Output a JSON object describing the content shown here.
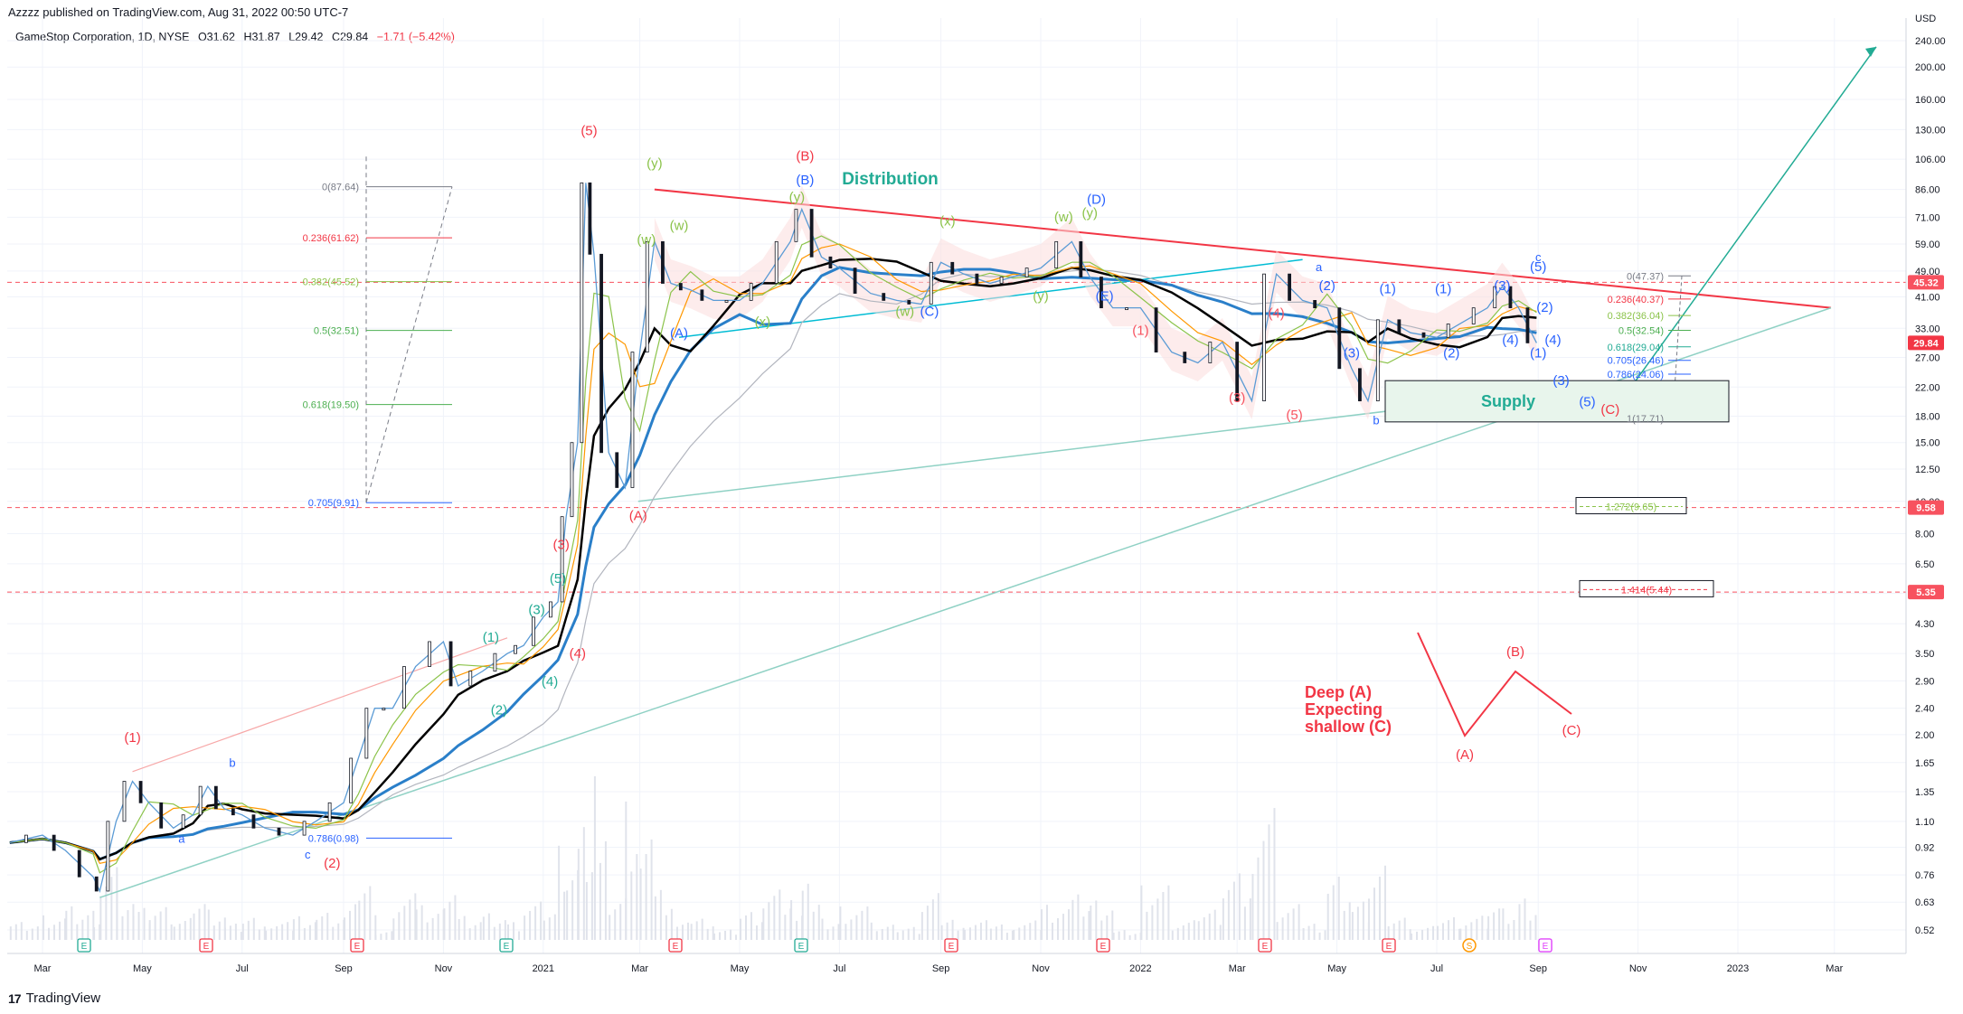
{
  "header": {
    "published": "Azzzz published on TradingView.com, Aug 31, 2022 00:50 UTC-7",
    "symbol": "GameStop Corporation, 1D, NYSE",
    "open": "O31.62",
    "high": "H31.87",
    "low": "L29.42",
    "close": "C29.84",
    "change": "−1.71 (−5.42%)"
  },
  "brand": "TradingView",
  "chart_data": {
    "type": "candlestick",
    "symbol": "GME",
    "yscale": "log",
    "ylim": [
      0.45,
      300
    ],
    "currency": "USD",
    "x_ticks": [
      "Mar",
      "May",
      "Jul",
      "Sep",
      "Nov",
      "2021",
      "Mar",
      "May",
      "Jul",
      "Sep",
      "Nov",
      "2022",
      "Mar",
      "May",
      "Jul",
      "Sep",
      "Nov",
      "2023",
      "Mar"
    ],
    "y_ticks": [
      "240.00",
      "200.00",
      "160.00",
      "130.00",
      "106.00",
      "86.00",
      "71.00",
      "59.00",
      "49.00",
      "41.00",
      "33.00",
      "27.00",
      "22.00",
      "18.00",
      "15.00",
      "12.50",
      "10.00",
      "8.00",
      "6.50",
      "5.30",
      "4.30",
      "3.50",
      "2.90",
      "2.40",
      "2.00",
      "1.65",
      "1.35",
      "1.10",
      "0.92",
      "0.76",
      "0.63",
      "0.52"
    ],
    "price_badges": [
      {
        "label": "45.32",
        "value": 45.32,
        "color": "#f7525f"
      },
      {
        "label": "29.84",
        "value": 29.84,
        "color": "#f23645"
      },
      {
        "label": "9.58",
        "value": 9.58,
        "color": "#f7525f"
      },
      {
        "label": "5.35",
        "value": 5.35,
        "color": "#f7525f"
      }
    ],
    "price_path": [
      [
        "2020-02-10",
        0.95
      ],
      [
        "2020-03-01",
        1.0
      ],
      [
        "2020-03-15",
        0.9
      ],
      [
        "2020-04-01",
        0.75
      ],
      [
        "2020-04-05",
        0.68
      ],
      [
        "2020-04-15",
        1.1
      ],
      [
        "2020-04-25",
        1.45
      ],
      [
        "2020-05-05",
        1.25
      ],
      [
        "2020-05-20",
        1.05
      ],
      [
        "2020-06-01",
        1.15
      ],
      [
        "2020-06-10",
        1.4
      ],
      [
        "2020-06-20",
        1.2
      ],
      [
        "2020-07-01",
        1.15
      ],
      [
        "2020-07-15",
        1.05
      ],
      [
        "2020-08-01",
        1.0
      ],
      [
        "2020-08-15",
        1.1
      ],
      [
        "2020-09-01",
        1.25
      ],
      [
        "2020-09-10",
        1.7
      ],
      [
        "2020-09-20",
        2.4
      ],
      [
        "2020-10-01",
        2.4
      ],
      [
        "2020-10-15",
        3.2
      ],
      [
        "2020-11-01",
        3.8
      ],
      [
        "2020-11-10",
        2.8
      ],
      [
        "2020-11-25",
        3.1
      ],
      [
        "2020-12-10",
        3.5
      ],
      [
        "2020-12-20",
        3.7
      ],
      [
        "2021-01-01",
        4.5
      ],
      [
        "2021-01-10",
        5.0
      ],
      [
        "2021-01-15",
        9.0
      ],
      [
        "2021-01-22",
        15.0
      ],
      [
        "2021-01-27",
        90.0
      ],
      [
        "2021-02-01",
        55.0
      ],
      [
        "2021-02-10",
        14.0
      ],
      [
        "2021-02-20",
        11.0
      ],
      [
        "2021-03-01",
        28.0
      ],
      [
        "2021-03-10",
        60.0
      ],
      [
        "2021-03-20",
        45.0
      ],
      [
        "2021-04-01",
        43.0
      ],
      [
        "2021-04-15",
        40.0
      ],
      [
        "2021-05-01",
        40.0
      ],
      [
        "2021-05-15",
        45.0
      ],
      [
        "2021-06-01",
        60.0
      ],
      [
        "2021-06-08",
        75.0
      ],
      [
        "2021-06-20",
        54.0
      ],
      [
        "2021-07-01",
        50.0
      ],
      [
        "2021-07-20",
        42.0
      ],
      [
        "2021-08-05",
        40.0
      ],
      [
        "2021-08-20",
        39.0
      ],
      [
        "2021-09-01",
        52.0
      ],
      [
        "2021-09-15",
        48.0
      ],
      [
        "2021-10-01",
        45.0
      ],
      [
        "2021-10-15",
        47.0
      ],
      [
        "2021-11-01",
        50.0
      ],
      [
        "2021-11-20",
        60.0
      ],
      [
        "2021-12-01",
        47.0
      ],
      [
        "2021-12-15",
        38.0
      ],
      [
        "2022-01-01",
        38.0
      ],
      [
        "2022-01-20",
        28.0
      ],
      [
        "2022-02-05",
        26.0
      ],
      [
        "2022-02-20",
        30.0
      ],
      [
        "2022-03-10",
        20.0
      ],
      [
        "2022-03-25",
        48.0
      ],
      [
        "2022-04-10",
        40.0
      ],
      [
        "2022-04-25",
        38.0
      ],
      [
        "2022-05-10",
        25.0
      ],
      [
        "2022-05-20",
        20.0
      ],
      [
        "2022-06-01",
        35.0
      ],
      [
        "2022-06-15",
        32.0
      ],
      [
        "2022-07-01",
        31.0
      ],
      [
        "2022-07-15",
        34.0
      ],
      [
        "2022-08-01",
        38.0
      ],
      [
        "2022-08-10",
        44.0
      ],
      [
        "2022-08-20",
        38.0
      ],
      [
        "2022-08-31",
        29.84
      ]
    ],
    "labels": [
      {
        "text": "(1)",
        "date": "2020-04-25",
        "price": 1.9,
        "color": "#f23645"
      },
      {
        "text": "a",
        "date": "2020-05-25",
        "price": 0.95,
        "color": "#2962ff"
      },
      {
        "text": "b",
        "date": "2020-06-25",
        "price": 1.6,
        "color": "#2962ff"
      },
      {
        "text": "c",
        "date": "2020-08-10",
        "price": 0.85,
        "color": "#2962ff"
      },
      {
        "text": "(2)",
        "date": "2020-08-25",
        "price": 0.8,
        "color": "#f23645"
      },
      {
        "text": "(1)",
        "date": "2020-11-30",
        "price": 3.8,
        "color": "#22ab94"
      },
      {
        "text": "(2)",
        "date": "2020-12-05",
        "price": 2.3,
        "color": "#22ab94"
      },
      {
        "text": "(3)",
        "date": "2020-12-28",
        "price": 4.6,
        "color": "#22ab94"
      },
      {
        "text": "(4)",
        "date": "2021-01-05",
        "price": 2.8,
        "color": "#22ab94"
      },
      {
        "text": "(5)",
        "date": "2021-01-10",
        "price": 5.7,
        "color": "#22ab94"
      },
      {
        "text": "(3)",
        "date": "2021-01-12",
        "price": 7.2,
        "color": "#f23645"
      },
      {
        "text": "(4)",
        "date": "2021-01-22",
        "price": 3.4,
        "color": "#f23645"
      },
      {
        "text": "(5)",
        "date": "2021-01-29",
        "price": 125.0,
        "color": "#f23645"
      },
      {
        "text": "(A)",
        "date": "2021-02-28",
        "price": 8.8,
        "color": "#f23645"
      },
      {
        "text": "(y)",
        "date": "2021-03-10",
        "price": 100.0,
        "color": "#8bc34a"
      },
      {
        "text": "(w)",
        "date": "2021-03-05",
        "price": 59.0,
        "color": "#8bc34a"
      },
      {
        "text": "(w)",
        "date": "2021-03-25",
        "price": 65.0,
        "color": "#8bc34a"
      },
      {
        "text": "(A)",
        "date": "2021-03-25",
        "price": 31.0,
        "color": "#2962ff"
      },
      {
        "text": "(x)",
        "date": "2021-05-15",
        "price": 33.5,
        "color": "#8bc34a"
      },
      {
        "text": "(B)",
        "date": "2021-06-10",
        "price": 105.0,
        "color": "#f23645"
      },
      {
        "text": "(B)",
        "date": "2021-06-10",
        "price": 89.0,
        "color": "#2962ff"
      },
      {
        "text": "(y)",
        "date": "2021-06-05",
        "price": 79.0,
        "color": "#8bc34a"
      },
      {
        "text": "(w)",
        "date": "2021-08-10",
        "price": 36.0,
        "color": "#8bc34a"
      },
      {
        "text": "(C)",
        "date": "2021-08-25",
        "price": 36.0,
        "color": "#2962ff"
      },
      {
        "text": "(x)",
        "date": "2021-09-05",
        "price": 67.0,
        "color": "#8bc34a"
      },
      {
        "text": "(y)",
        "date": "2021-11-01",
        "price": 40.0,
        "color": "#8bc34a"
      },
      {
        "text": "(w)",
        "date": "2021-11-15",
        "price": 69.0,
        "color": "#8bc34a"
      },
      {
        "text": "(y)",
        "date": "2021-12-01",
        "price": 71.0,
        "color": "#8bc34a"
      },
      {
        "text": "(D)",
        "date": "2021-12-05",
        "price": 78.0,
        "color": "#2962ff"
      },
      {
        "text": "(E)",
        "date": "2021-12-10",
        "price": 40.0,
        "color": "#2962ff"
      },
      {
        "text": "(1)",
        "date": "2022-01-01",
        "price": 31.5,
        "color": "#f7525f"
      },
      {
        "text": "(3)",
        "date": "2022-03-01",
        "price": 19.8,
        "color": "#f7525f"
      },
      {
        "text": "(4)",
        "date": "2022-03-25",
        "price": 35.5,
        "color": "#f7525f"
      },
      {
        "text": "(5)",
        "date": "2022-04-05",
        "price": 17.6,
        "color": "#f7525f"
      },
      {
        "text": "Distribution",
        "date": "2021-08-01",
        "price": 89.0,
        "color": "#22ab94"
      },
      {
        "text": "a",
        "date": "2022-04-20",
        "price": 49.0,
        "color": "#2962ff"
      },
      {
        "text": "(1)",
        "date": "2022-06-01",
        "price": 42.0,
        "color": "#2962ff"
      },
      {
        "text": "(3)",
        "date": "2022-05-10",
        "price": 27.0,
        "color": "#2962ff"
      },
      {
        "text": "b",
        "date": "2022-05-25",
        "price": 17.0,
        "color": "#2962ff"
      },
      {
        "text": "(2)",
        "date": "2022-04-25",
        "price": 43.0,
        "color": "#2962ff"
      },
      {
        "text": "(1)",
        "date": "2022-07-05",
        "price": 42.0,
        "color": "#2962ff"
      },
      {
        "text": "(2)",
        "date": "2022-07-10",
        "price": 27.0,
        "color": "#2962ff"
      },
      {
        "text": "(3)",
        "date": "2022-08-10",
        "price": 43.0,
        "color": "#2962ff"
      },
      {
        "text": "(4)",
        "date": "2022-08-15",
        "price": 29.5,
        "color": "#2962ff"
      },
      {
        "text": "c",
        "date": "2022-09-01",
        "price": 52.5,
        "color": "#2962ff"
      },
      {
        "text": "(5)",
        "date": "2022-09-01",
        "price": 49.0,
        "color": "#2962ff"
      },
      {
        "text": "(1)",
        "date": "2022-09-01",
        "price": 27.0,
        "color": "#2962ff"
      },
      {
        "text": "(2)",
        "date": "2022-09-05",
        "price": 37.0,
        "color": "#2962ff"
      },
      {
        "text": "(4)",
        "date": "2022-09-10",
        "price": 29.5,
        "color": "#2962ff"
      },
      {
        "text": "(3)",
        "date": "2022-09-15",
        "price": 22.3,
        "color": "#2962ff"
      },
      {
        "text": "(5)",
        "date": "2022-10-01",
        "price": 19.3,
        "color": "#2962ff"
      },
      {
        "text": "(C)",
        "date": "2022-10-15",
        "price": 18.3,
        "color": "#f23645"
      }
    ],
    "fib_left": [
      {
        "label": "0(87.64)",
        "price": 87.64,
        "color": "#787b86"
      },
      {
        "label": "0.236(61.62)",
        "price": 61.62,
        "color": "#f23645"
      },
      {
        "label": "0.382(45.52)",
        "price": 45.52,
        "color": "#8bc34a"
      },
      {
        "label": "0.5(32.51)",
        "price": 32.51,
        "color": "#4caf50"
      },
      {
        "label": "0.618(19.50)",
        "price": 19.5,
        "color": "#4caf50"
      },
      {
        "label": "0.705(9.91)",
        "price": 9.91,
        "color": "#2962ff"
      },
      {
        "label": "0.786(0.98)",
        "price": 0.98,
        "color": "#2962ff"
      }
    ],
    "fib_right": [
      {
        "label": "0(47.37)",
        "price": 47.37,
        "color": "#787b86"
      },
      {
        "label": "0.236(40.37)",
        "price": 40.37,
        "color": "#f23645"
      },
      {
        "label": "0.382(36.04)",
        "price": 36.04,
        "color": "#8bc34a"
      },
      {
        "label": "0.5(32.54)",
        "price": 32.54,
        "color": "#4caf50"
      },
      {
        "label": "0.618(29.04)",
        "price": 29.04,
        "color": "#22ab94"
      },
      {
        "label": "0.705(26.46)",
        "price": 26.46,
        "color": "#2962ff"
      },
      {
        "label": "0.786(24.06)",
        "price": 24.06,
        "color": "#2962ff"
      },
      {
        "label": "1(17.71)",
        "price": 17.71,
        "color": "#787b86"
      },
      {
        "label": "1.272(9.65)",
        "price": 9.65,
        "color": "#8bc34a"
      },
      {
        "label": "1.414(5.44)",
        "price": 5.44,
        "color": "#f23645"
      }
    ],
    "annotations": {
      "supply": "Supply",
      "note_line1": "Deep (A)",
      "note_line2": "Expecting",
      "note_line3": "shallow (C)",
      "pattern": [
        "(A)",
        "(B)",
        "(C)"
      ]
    },
    "events": [
      "E",
      "E",
      "E",
      "E",
      "E",
      "E",
      "E",
      "E",
      "E",
      "E",
      "E",
      "S",
      "E"
    ]
  }
}
